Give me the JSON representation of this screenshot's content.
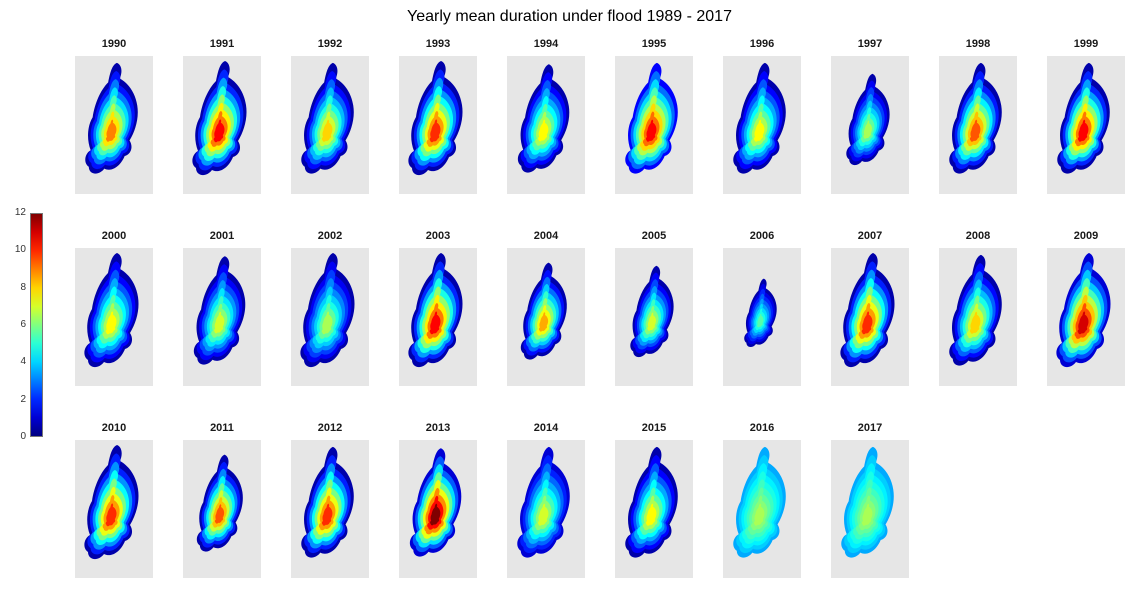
{
  "title": "Yearly mean duration under flood 1989 - 2017",
  "colorbar": {
    "min": 0,
    "max": 12,
    "ticks": [
      0,
      2,
      4,
      6,
      8,
      10,
      12
    ],
    "colormap": "jet",
    "low_color": "#000080",
    "high_color": "#800000"
  },
  "panel_background": "#e6e6e6",
  "chart_data": {
    "type": "heatmap",
    "title": "Yearly mean duration under flood 1989 - 2017",
    "colormap": "jet",
    "value_range": [
      0,
      12
    ],
    "legend_position": "left",
    "rows": [
      10,
      10,
      8
    ],
    "facets": [
      {
        "year": "1990",
        "min_value": 0.5,
        "peak_value": 9,
        "extent": 0.97
      },
      {
        "year": "1991",
        "min_value": 0.5,
        "peak_value": 10.5,
        "extent": 1.0
      },
      {
        "year": "1992",
        "min_value": 0.5,
        "peak_value": 8,
        "extent": 0.97
      },
      {
        "year": "1993",
        "min_value": 0.5,
        "peak_value": 10,
        "extent": 1.0
      },
      {
        "year": "1994",
        "min_value": 0.5,
        "peak_value": 7.5,
        "extent": 0.95
      },
      {
        "year": "1995",
        "min_value": 1.5,
        "peak_value": 10.5,
        "extent": 0.97
      },
      {
        "year": "1996",
        "min_value": 0.5,
        "peak_value": 7.5,
        "extent": 0.97
      },
      {
        "year": "1997",
        "min_value": 0.5,
        "peak_value": 6.5,
        "extent": 0.8
      },
      {
        "year": "1998",
        "min_value": 0.5,
        "peak_value": 9.5,
        "extent": 0.97
      },
      {
        "year": "1999",
        "min_value": 0.5,
        "peak_value": 10.5,
        "extent": 0.97
      },
      {
        "year": "2000",
        "min_value": 0.5,
        "peak_value": 7.5,
        "extent": 1.0
      },
      {
        "year": "2001",
        "min_value": 0.5,
        "peak_value": 7,
        "extent": 0.95
      },
      {
        "year": "2002",
        "min_value": 0.5,
        "peak_value": 6.5,
        "extent": 1.0
      },
      {
        "year": "2003",
        "min_value": 0.5,
        "peak_value": 10.5,
        "extent": 1.0
      },
      {
        "year": "2004",
        "min_value": 0.5,
        "peak_value": 8.5,
        "extent": 0.85
      },
      {
        "year": "2005",
        "min_value": 0.5,
        "peak_value": 7,
        "extent": 0.8
      },
      {
        "year": "2006",
        "min_value": 0.5,
        "peak_value": 5.5,
        "extent": 0.6
      },
      {
        "year": "2007",
        "min_value": 0.5,
        "peak_value": 10,
        "extent": 1.0
      },
      {
        "year": "2008",
        "min_value": 0.5,
        "peak_value": 8,
        "extent": 0.97
      },
      {
        "year": "2009",
        "min_value": 1,
        "peak_value": 11,
        "extent": 1.0
      },
      {
        "year": "2010",
        "min_value": 0.5,
        "peak_value": 10,
        "extent": 1.0
      },
      {
        "year": "2011",
        "min_value": 0.5,
        "peak_value": 9.5,
        "extent": 0.85
      },
      {
        "year": "2012",
        "min_value": 0.5,
        "peak_value": 10,
        "extent": 0.97
      },
      {
        "year": "2013",
        "min_value": 1,
        "peak_value": 12,
        "extent": 0.95
      },
      {
        "year": "2014",
        "min_value": 1,
        "peak_value": 7,
        "extent": 0.97
      },
      {
        "year": "2015",
        "min_value": 0.5,
        "peak_value": 7.5,
        "extent": 0.97
      },
      {
        "year": "2016",
        "min_value": 3.5,
        "peak_value": 6.5,
        "extent": 0.97
      },
      {
        "year": "2017",
        "min_value": 3.5,
        "peak_value": 6.5,
        "extent": 0.97
      }
    ]
  }
}
